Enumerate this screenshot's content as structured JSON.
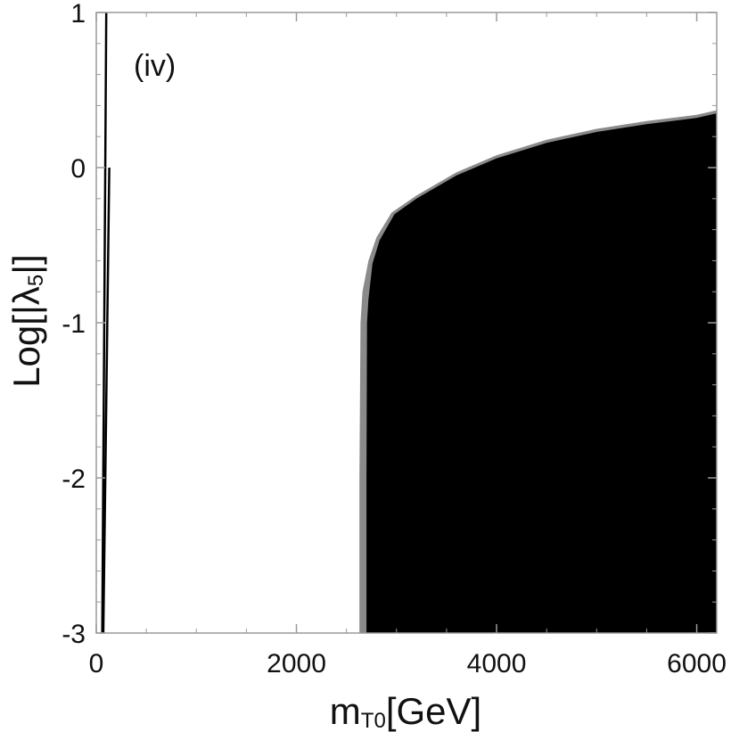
{
  "chart_data": {
    "type": "area",
    "panel_label": "(iv)",
    "xlabel": "m",
    "xlabel_sub": "T0",
    "xlabel_unit": "[GeV]",
    "ylabel": "Log[|λ",
    "ylabel_sub": "5",
    "ylabel_end": "|]",
    "xlim": [
      0,
      6200
    ],
    "ylim": [
      -3,
      1
    ],
    "xticks": [
      0,
      2000,
      4000,
      6000
    ],
    "yticks": [
      -3,
      -2,
      -1,
      0,
      1
    ],
    "xtick_labels": [
      "0",
      "2000",
      "4000",
      "6000"
    ],
    "ytick_labels": [
      "-3",
      "-2",
      "-1",
      "0",
      "1"
    ],
    "grid": false,
    "colors": {
      "black_region": "#000000",
      "gray_region": "#8a8a8a",
      "thin_lines": "#000000"
    },
    "series": [
      {
        "color": "#8a8a8a",
        "boundary": [
          [
            2630,
            -3
          ],
          [
            2630,
            -2.0
          ],
          [
            2640,
            -1.0
          ],
          [
            2660,
            -0.8
          ],
          [
            2720,
            -0.6
          ],
          [
            2800,
            -0.45
          ],
          [
            2950,
            -0.29
          ],
          [
            3200,
            -0.18
          ],
          [
            3600,
            -0.03
          ],
          [
            4000,
            0.08
          ],
          [
            4500,
            0.18
          ],
          [
            5000,
            0.25
          ],
          [
            5500,
            0.3
          ],
          [
            6000,
            0.34
          ],
          [
            6200,
            0.37
          ]
        ]
      },
      {
        "color": "#000000",
        "boundary": [
          [
            2700,
            -3
          ],
          [
            2700,
            -2.0
          ],
          [
            2705,
            -1.0
          ],
          [
            2720,
            -0.85
          ],
          [
            2760,
            -0.62
          ],
          [
            2830,
            -0.47
          ],
          [
            2980,
            -0.3
          ],
          [
            3200,
            -0.2
          ],
          [
            3600,
            -0.05
          ],
          [
            4000,
            0.06
          ],
          [
            4500,
            0.16
          ],
          [
            5000,
            0.23
          ],
          [
            5500,
            0.28
          ],
          [
            6000,
            0.32
          ],
          [
            6200,
            0.35
          ]
        ]
      }
    ],
    "thin_lines": [
      {
        "x": [
          [
            60,
            -3
          ],
          [
            100,
            1
          ]
        ]
      },
      {
        "x": [
          [
            70,
            -3
          ],
          [
            130,
            0
          ]
        ]
      }
    ]
  }
}
